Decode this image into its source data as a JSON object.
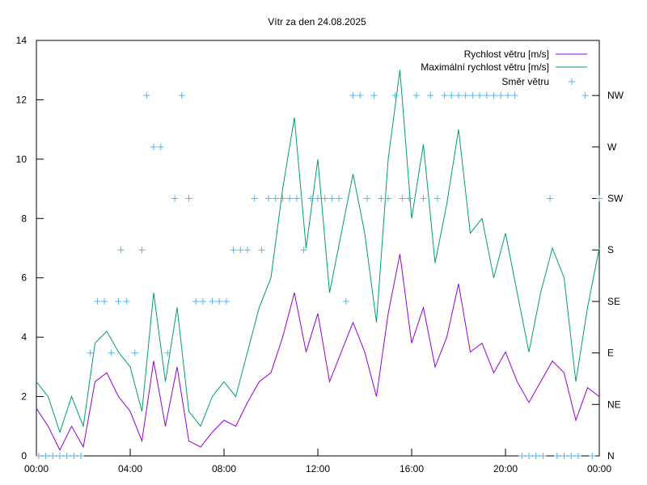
{
  "chart_data": {
    "type": "line",
    "title": "Vítr za den 24.08.2025",
    "xlabel": "",
    "ylabel": "",
    "x_tick_labels": [
      "00:00",
      "04:00",
      "08:00",
      "12:00",
      "16:00",
      "20:00",
      "00:00"
    ],
    "x_range_hours": [
      0,
      24
    ],
    "y_ticks": [
      0,
      2,
      4,
      6,
      8,
      10,
      12,
      14
    ],
    "ylim": [
      0,
      14
    ],
    "y2_ticks": [
      "N",
      "NE",
      "E",
      "SE",
      "S",
      "SW",
      "W",
      "NW"
    ],
    "grid": false,
    "legend_position": "top-right",
    "colors": {
      "speed": "#9400d3",
      "gust": "#009e73",
      "direction": "#56b4e9"
    },
    "series": [
      {
        "name": "Rychlost větru [m/s]",
        "kind": "line",
        "x": [
          0,
          0.5,
          1,
          1.5,
          2,
          2.5,
          3,
          3.5,
          4,
          4.5,
          5,
          5.5,
          6,
          6.5,
          7,
          7.5,
          8,
          8.5,
          9,
          9.5,
          10,
          10.5,
          11,
          11.5,
          12,
          12.5,
          13,
          13.5,
          14,
          14.5,
          15,
          15.5,
          16,
          16.5,
          17,
          17.5,
          18,
          18.5,
          19,
          19.5,
          20,
          20.5,
          21,
          21.5,
          22,
          22.5,
          23,
          23.5,
          24
        ],
        "values": [
          1.6,
          1.0,
          0.2,
          1.0,
          0.3,
          2.5,
          2.8,
          2.0,
          1.5,
          0.5,
          3.2,
          1.0,
          3.0,
          0.5,
          0.3,
          0.8,
          1.2,
          1.0,
          1.8,
          2.5,
          2.8,
          4.0,
          5.5,
          3.5,
          4.8,
          2.5,
          3.5,
          4.5,
          3.5,
          2.0,
          4.8,
          6.8,
          3.8,
          5.0,
          3.0,
          4.0,
          5.8,
          3.5,
          3.8,
          2.8,
          3.5,
          2.5,
          1.8,
          2.5,
          3.2,
          2.8,
          1.2,
          2.3,
          2.0
        ]
      },
      {
        "name": "Maximální rychlost větru [m/s]",
        "kind": "line",
        "x": [
          0,
          0.5,
          1,
          1.5,
          2,
          2.5,
          3,
          3.5,
          4,
          4.5,
          5,
          5.5,
          6,
          6.5,
          7,
          7.5,
          8,
          8.5,
          9,
          9.5,
          10,
          10.5,
          11,
          11.5,
          12,
          12.5,
          13,
          13.5,
          14,
          14.5,
          15,
          15.5,
          16,
          16.5,
          17,
          17.5,
          18,
          18.5,
          19,
          19.5,
          20,
          20.5,
          21,
          21.5,
          22,
          22.5,
          23,
          23.5,
          24
        ],
        "values": [
          2.5,
          2.0,
          0.8,
          2.0,
          1.0,
          3.8,
          4.2,
          3.5,
          3.0,
          1.5,
          5.5,
          2.5,
          5.0,
          1.5,
          1.0,
          2.0,
          2.5,
          2.0,
          3.5,
          5.0,
          6.0,
          9.0,
          11.4,
          7.0,
          10.0,
          5.5,
          7.5,
          9.5,
          7.5,
          4.5,
          10.0,
          13.0,
          8.0,
          10.5,
          6.5,
          8.5,
          11.0,
          7.5,
          8.0,
          6.0,
          7.5,
          5.5,
          3.5,
          5.5,
          7.0,
          6.0,
          2.5,
          5.0,
          7.0
        ]
      },
      {
        "name": "Směr větru",
        "kind": "points",
        "categories": [
          "N",
          "NE",
          "E",
          "SE",
          "S",
          "SW",
          "W",
          "NW"
        ],
        "x": [
          0.1,
          0.4,
          0.7,
          1.0,
          1.3,
          1.6,
          1.9,
          2.3,
          2.6,
          2.9,
          3.2,
          3.5,
          3.6,
          3.85,
          4.2,
          4.5,
          4.7,
          5.0,
          5.3,
          5.6,
          5.9,
          6.2,
          6.5,
          6.8,
          7.1,
          7.5,
          7.8,
          8.1,
          8.4,
          8.7,
          9.0,
          9.3,
          9.6,
          9.9,
          10.2,
          10.5,
          10.8,
          11.1,
          11.4,
          11.7,
          12.0,
          12.3,
          12.6,
          12.9,
          13.2,
          13.5,
          13.8,
          14.1,
          14.4,
          14.7,
          15.0,
          15.3,
          15.6,
          15.9,
          16.2,
          16.5,
          16.8,
          17.1,
          17.4,
          17.7,
          18.0,
          18.3,
          18.6,
          18.9,
          19.2,
          19.5,
          19.8,
          20.1,
          20.4,
          20.7,
          21.0,
          21.3,
          21.6,
          21.9,
          22.2,
          22.5,
          22.8,
          23.1,
          23.4,
          23.7,
          24.0
        ],
        "values": [
          "N",
          "N",
          "N",
          "N",
          "N",
          "N",
          "N",
          "E",
          "SE",
          "SE",
          "E",
          "SE",
          "S",
          "SE",
          "E",
          "S",
          "NW",
          "W",
          "W",
          "E",
          "SW",
          "NW",
          "SW",
          "SE",
          "SE",
          "SE",
          "SE",
          "SE",
          "S",
          "S",
          "S",
          "SW",
          "S",
          "SW",
          "SW",
          "SW",
          "SW",
          "SW",
          "S",
          "SW",
          "SW",
          "SW",
          "SW",
          "SW",
          "SE",
          "NW",
          "NW",
          "SW",
          "NW",
          "SW",
          "SW",
          "NW",
          "SW",
          "SW",
          "NW",
          "SW",
          "NW",
          "SW",
          "NW",
          "NW",
          "NW",
          "NW",
          "NW",
          "NW",
          "NW",
          "NW",
          "NW",
          "NW",
          "NW",
          "N",
          "N",
          "N",
          "N",
          "SW",
          "N",
          "N",
          "N",
          "N",
          "NW",
          "N",
          "SW"
        ]
      }
    ]
  }
}
